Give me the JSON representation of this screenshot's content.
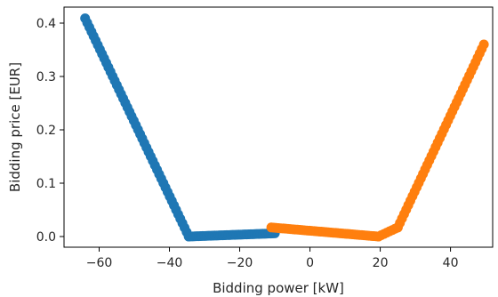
{
  "chart_data": {
    "type": "scatter",
    "title": "",
    "xlabel": "Bidding power [kW]",
    "ylabel": "Bidding price [EUR]",
    "xlim": [
      -70,
      52
    ],
    "ylim": [
      -0.02,
      0.43
    ],
    "xticks": [
      -60,
      -40,
      -20,
      0,
      20,
      40
    ],
    "yticks": [
      0.0,
      0.1,
      0.2,
      0.3,
      0.4
    ],
    "xtick_labels": [
      "−60",
      "−40",
      "−20",
      "0",
      "20",
      "40"
    ],
    "ytick_labels": [
      "0.0",
      "0.1",
      "0.2",
      "0.3",
      "0.4"
    ],
    "grid": false,
    "legend": "none",
    "series": [
      {
        "color": "#1f77b4",
        "segments": [
          {
            "x_start": -64,
            "y_start": 0.409,
            "x_end": -34.5,
            "y_end": 0.0,
            "points": 50
          },
          {
            "x_start": -34.5,
            "y_start": 0.0,
            "x_end": -10,
            "y_end": 0.006,
            "points": 44
          }
        ]
      },
      {
        "color": "#ff7f0e",
        "segments": [
          {
            "x_start": -11,
            "y_start": 0.017,
            "x_end": 19.5,
            "y_end": 0.0,
            "points": 46
          },
          {
            "x_start": 19.5,
            "y_start": 0.0,
            "x_end": 25,
            "y_end": 0.017,
            "points": 8
          },
          {
            "x_start": 25,
            "y_start": 0.017,
            "x_end": 49.5,
            "y_end": 0.36,
            "points": 42
          }
        ]
      }
    ]
  }
}
